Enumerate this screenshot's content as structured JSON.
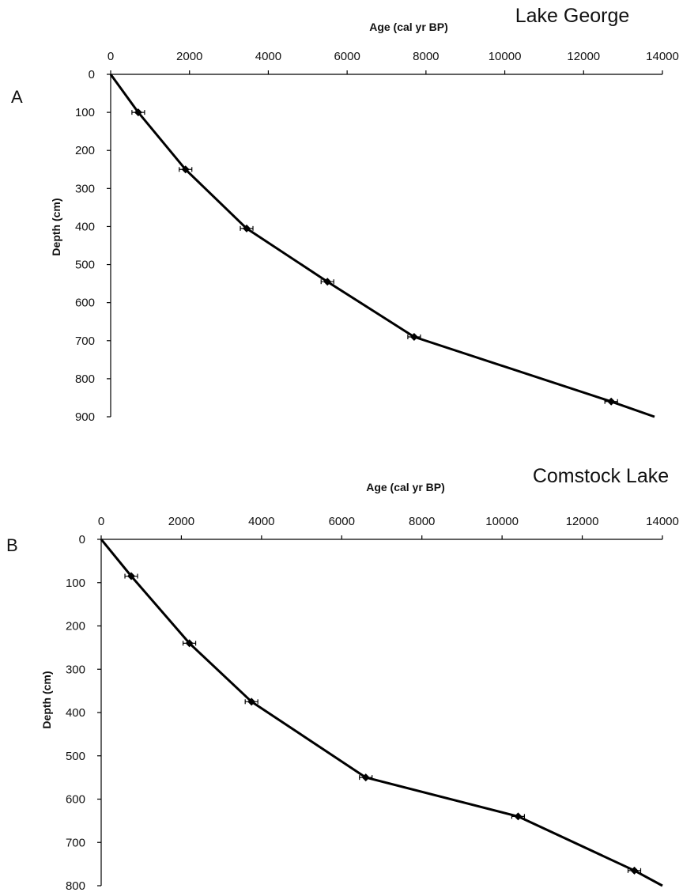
{
  "chart_data": [
    {
      "type": "line",
      "panel_label": "A",
      "title": "Lake George",
      "xlabel": "Age (cal yr BP)",
      "ylabel": "Depth (cm)",
      "x_axis_position": "top",
      "y_axis_inverted": true,
      "xlim": [
        0,
        14000
      ],
      "ylim": [
        0,
        900
      ],
      "x_ticks": [
        0,
        2000,
        4000,
        6000,
        8000,
        10000,
        12000,
        14000
      ],
      "y_ticks": [
        0,
        100,
        200,
        300,
        400,
        500,
        600,
        700,
        800,
        900
      ],
      "grid": false,
      "line": {
        "x": [
          0,
          700,
          1900,
          3450,
          5500,
          7700,
          12700,
          13800
        ],
        "y": [
          0,
          100,
          250,
          405,
          545,
          690,
          860,
          900
        ]
      },
      "points": {
        "x": [
          700,
          1900,
          3450,
          5500,
          7700,
          12700
        ],
        "y": [
          100,
          250,
          405,
          545,
          690,
          860
        ]
      }
    },
    {
      "type": "line",
      "panel_label": "B",
      "title": "Comstock Lake",
      "xlabel": "Age (cal yr BP)",
      "ylabel": "Depth (cm)",
      "x_axis_position": "top",
      "y_axis_inverted": true,
      "xlim": [
        0,
        14000
      ],
      "ylim": [
        0,
        800
      ],
      "x_ticks": [
        0,
        2000,
        4000,
        6000,
        8000,
        10000,
        12000,
        14000
      ],
      "y_ticks": [
        0,
        100,
        200,
        300,
        400,
        500,
        600,
        700,
        800
      ],
      "grid": false,
      "line": {
        "x": [
          0,
          750,
          2200,
          3750,
          6600,
          10400,
          13300,
          14000
        ],
        "y": [
          0,
          85,
          240,
          375,
          550,
          640,
          765,
          800
        ]
      },
      "points": {
        "x": [
          750,
          2200,
          3750,
          6600,
          10400,
          13300
        ],
        "y": [
          85,
          240,
          375,
          550,
          640,
          765
        ]
      }
    }
  ]
}
